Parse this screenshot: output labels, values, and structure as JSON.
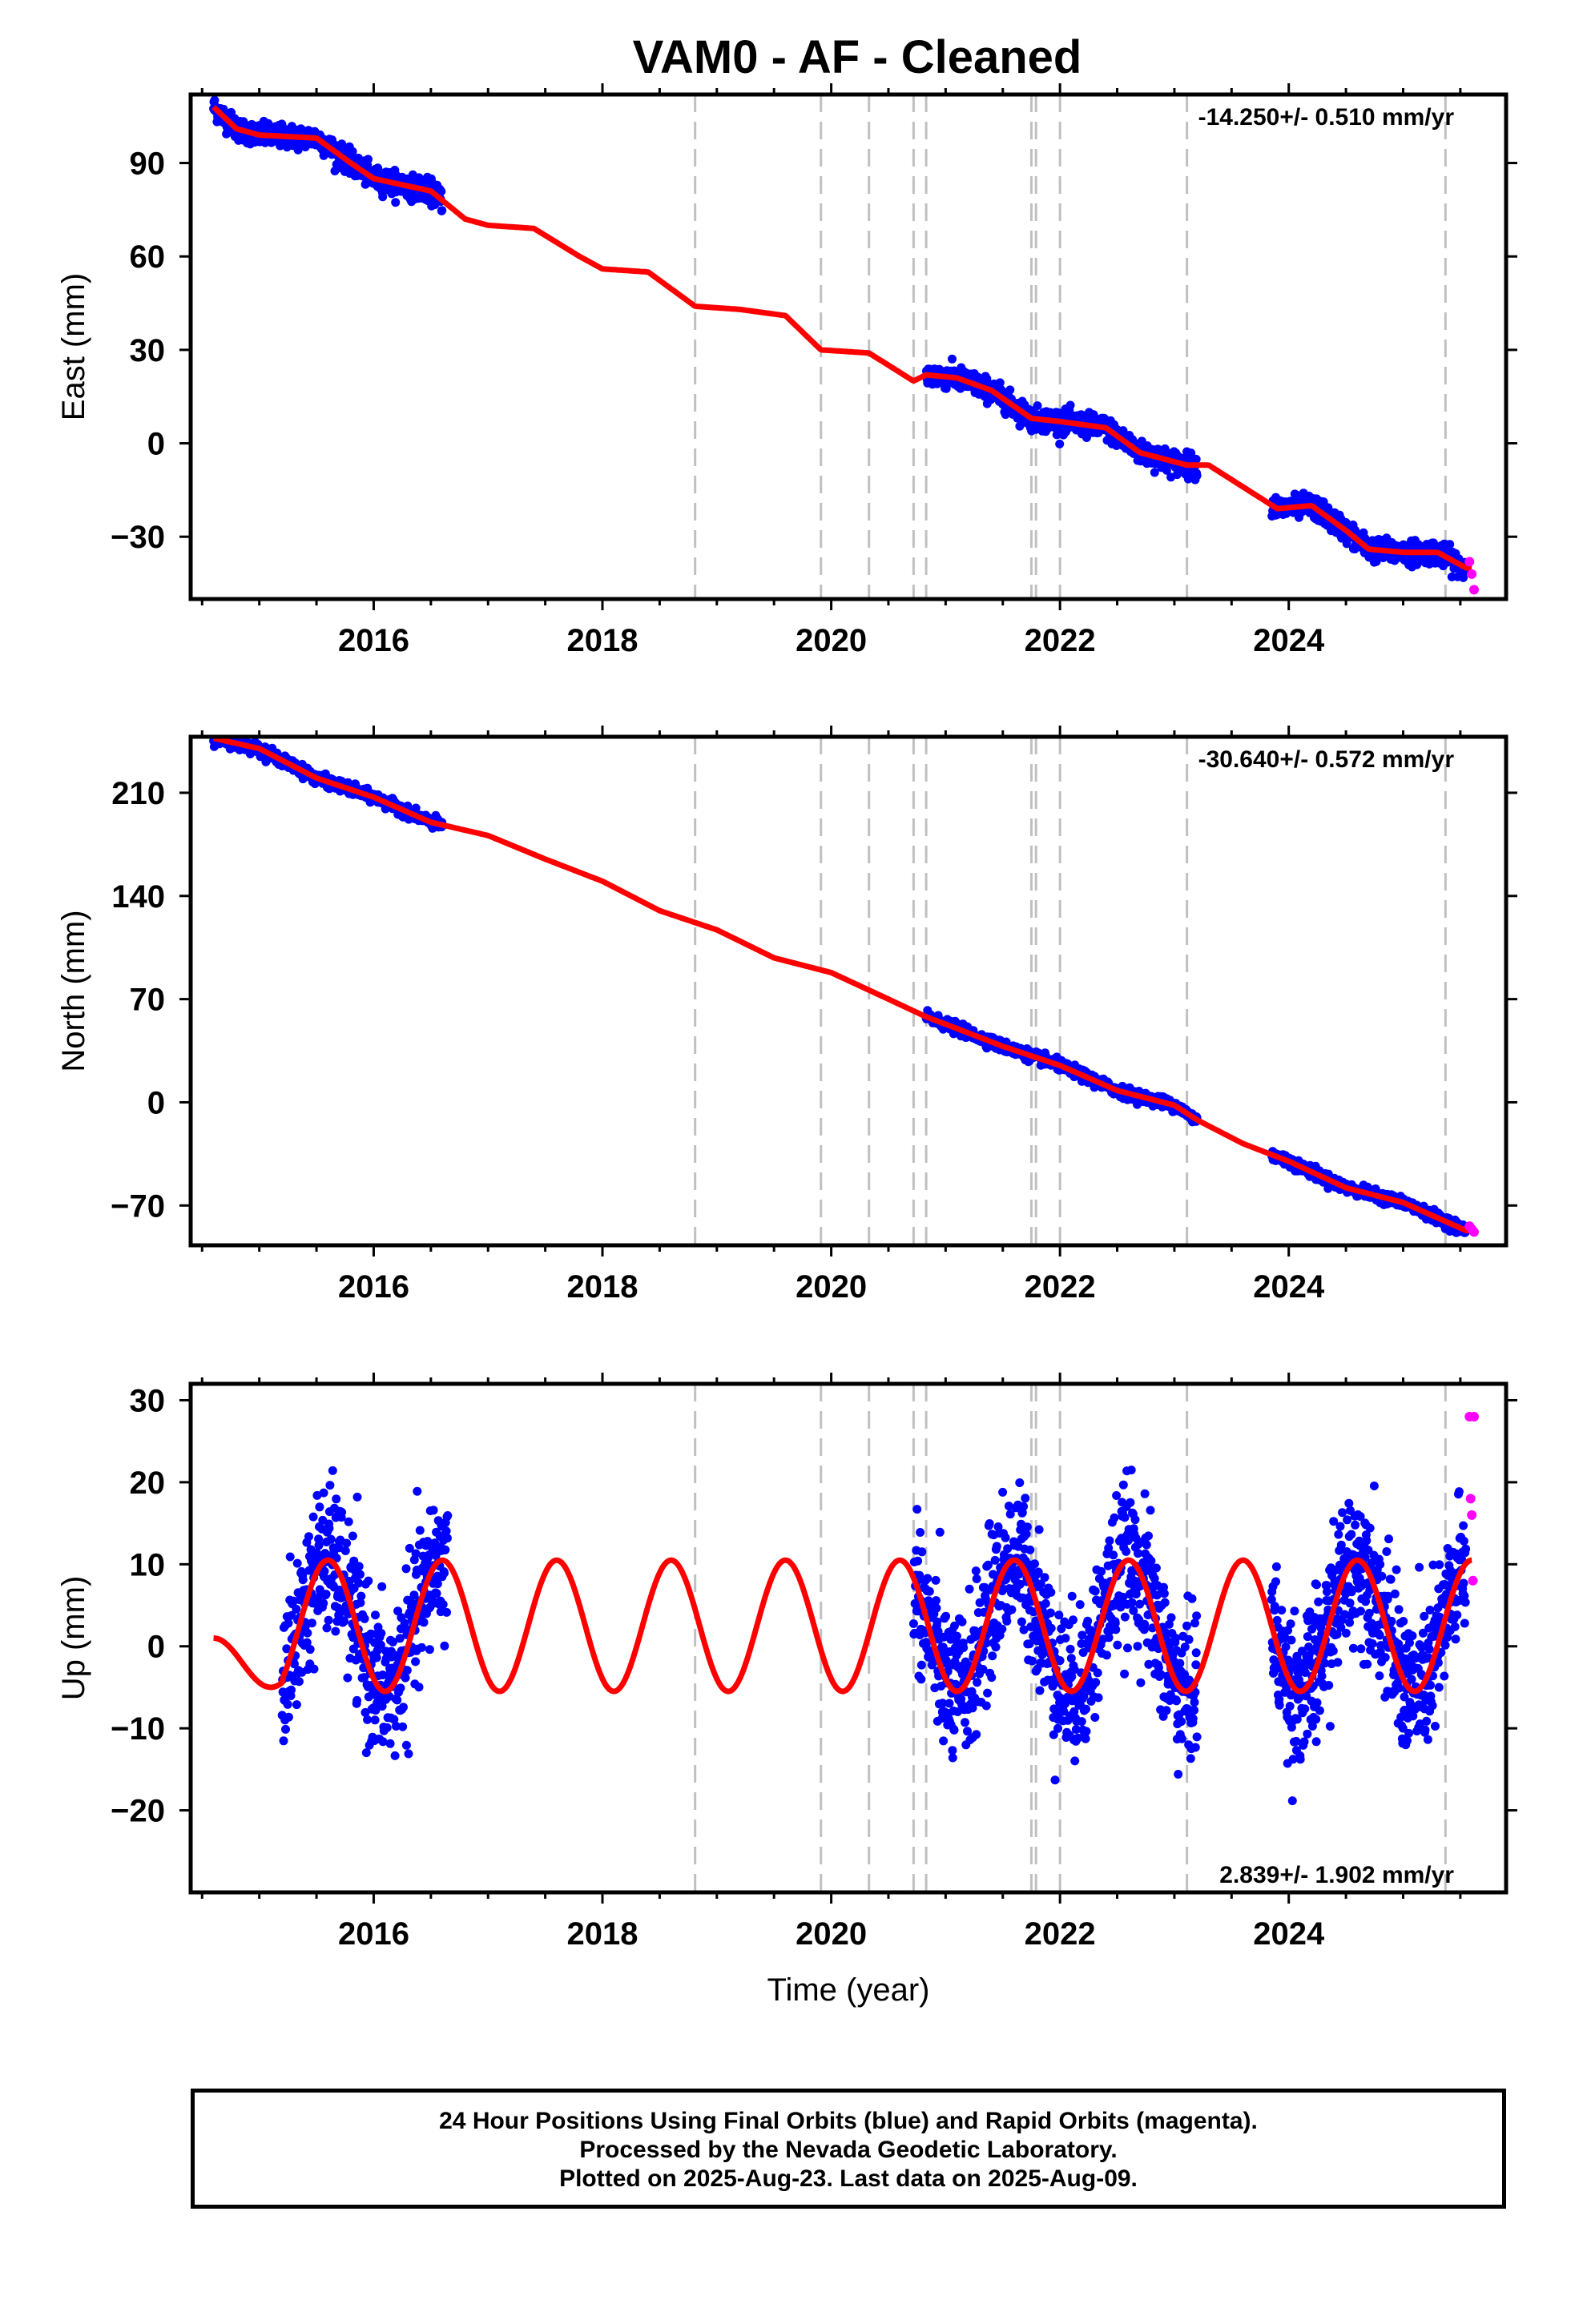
{
  "title": "VAM0  - AF - Cleaned",
  "footer": {
    "line1": "24 Hour Positions Using Final Orbits (blue) and Rapid Orbits (magenta).",
    "line2": "Processed by the Nevada Geodetic Laboratory.",
    "line3": "Plotted on 2025-Aug-23. Last data on 2025-Aug-09."
  },
  "colors": {
    "final": "#0000ff",
    "rapid": "#ff00ff",
    "model": "#ff0000",
    "events": "#c0c0c0"
  },
  "chart_data": [
    {
      "type": "scatter",
      "component": "East",
      "ylabel": "East (mm)",
      "xlabel": "",
      "xlim": [
        2014.4,
        2025.9
      ],
      "ylim": [
        -50,
        112
      ],
      "yticks": [
        -30,
        0,
        30,
        60,
        90
      ],
      "xticks": [
        2016,
        2018,
        2020,
        2022,
        2024
      ],
      "rate": "-14.250+/- 0.510 mm/yr",
      "rate_position": "top-right",
      "event_lines": [
        2018.81,
        2019.91,
        2020.33,
        2020.72,
        2020.83,
        2021.75,
        2021.79,
        2022.0,
        2023.11,
        2025.37
      ],
      "segments": [
        [
          2014.6,
          2016.6
        ],
        [
          2020.83,
          2023.2
        ],
        [
          2023.85,
          2025.55
        ]
      ],
      "model_points": [
        [
          2014.6,
          108
        ],
        [
          2014.8,
          101
        ],
        [
          2015.0,
          99
        ],
        [
          2015.5,
          98
        ],
        [
          2015.8,
          90
        ],
        [
          2016.0,
          85
        ],
        [
          2016.5,
          81
        ],
        [
          2016.8,
          72
        ],
        [
          2017.0,
          70
        ],
        [
          2017.4,
          69
        ],
        [
          2017.8,
          60
        ],
        [
          2018.0,
          56
        ],
        [
          2018.4,
          55
        ],
        [
          2018.81,
          44
        ],
        [
          2019.2,
          43
        ],
        [
          2019.6,
          41
        ],
        [
          2019.91,
          30
        ],
        [
          2020.33,
          29
        ],
        [
          2020.72,
          20
        ],
        [
          2020.83,
          22
        ],
        [
          2021.1,
          21
        ],
        [
          2021.4,
          17
        ],
        [
          2021.75,
          8
        ],
        [
          2022.0,
          7
        ],
        [
          2022.4,
          5
        ],
        [
          2022.7,
          -3
        ],
        [
          2023.11,
          -7
        ],
        [
          2023.3,
          -7
        ],
        [
          2023.6,
          -14
        ],
        [
          2023.9,
          -21
        ],
        [
          2024.2,
          -20
        ],
        [
          2024.5,
          -28
        ],
        [
          2024.7,
          -34
        ],
        [
          2025.0,
          -35
        ],
        [
          2025.3,
          -35
        ],
        [
          2025.55,
          -40
        ]
      ],
      "rapid_points": [
        [
          2025.58,
          -38
        ],
        [
          2025.6,
          -42
        ],
        [
          2025.62,
          -47
        ]
      ]
    },
    {
      "type": "scatter",
      "component": "North",
      "ylabel": "North (mm)",
      "xlabel": "",
      "xlim": [
        2014.4,
        2025.9
      ],
      "ylim": [
        -97,
        248
      ],
      "yticks": [
        -70,
        0,
        70,
        140,
        210
      ],
      "xticks": [
        2016,
        2018,
        2020,
        2022,
        2024
      ],
      "rate": "-30.640+/- 0.572 mm/yr",
      "rate_position": "top-right",
      "event_lines": [
        2018.81,
        2019.91,
        2020.33,
        2020.72,
        2020.83,
        2021.75,
        2021.79,
        2022.0,
        2023.11,
        2025.37
      ],
      "segments": [
        [
          2014.6,
          2016.6
        ],
        [
          2020.83,
          2023.2
        ],
        [
          2023.85,
          2025.55
        ]
      ],
      "model_points": [
        [
          2014.6,
          247
        ],
        [
          2015.0,
          240
        ],
        [
          2015.5,
          220
        ],
        [
          2016.0,
          207
        ],
        [
          2016.5,
          190
        ],
        [
          2017.0,
          181
        ],
        [
          2017.5,
          165
        ],
        [
          2018.0,
          150
        ],
        [
          2018.5,
          130
        ],
        [
          2019.0,
          117
        ],
        [
          2019.5,
          98
        ],
        [
          2020.0,
          88
        ],
        [
          2020.5,
          70
        ],
        [
          2020.83,
          58
        ],
        [
          2021.0,
          53
        ],
        [
          2021.5,
          38
        ],
        [
          2022.0,
          25
        ],
        [
          2022.5,
          8
        ],
        [
          2023.0,
          -2
        ],
        [
          2023.2,
          -12
        ],
        [
          2023.6,
          -28
        ],
        [
          2024.0,
          -40
        ],
        [
          2024.5,
          -58
        ],
        [
          2025.0,
          -68
        ],
        [
          2025.55,
          -87
        ]
      ],
      "rapid_points": [
        [
          2025.58,
          -84
        ],
        [
          2025.6,
          -86
        ],
        [
          2025.62,
          -88
        ]
      ]
    },
    {
      "type": "scatter",
      "component": "Up",
      "ylabel": "Up (mm)",
      "xlabel": "Time (year)",
      "xlim": [
        2014.4,
        2025.9
      ],
      "ylim": [
        -30,
        32
      ],
      "yticks": [
        -20,
        -10,
        0,
        10,
        20,
        30
      ],
      "xticks": [
        2016,
        2018,
        2020,
        2022,
        2024
      ],
      "rate": "2.839+/- 1.902 mm/yr",
      "rate_position": "bottom-right",
      "event_lines": [
        2018.81,
        2019.91,
        2020.33,
        2020.72,
        2020.83,
        2021.75,
        2021.79,
        2022.0,
        2023.11,
        2025.37
      ],
      "segments": [
        [
          2015.2,
          2016.65
        ],
        [
          2020.72,
          2023.2
        ],
        [
          2023.85,
          2025.55
        ]
      ],
      "amplitude": 8,
      "scatter_sd": 4.5,
      "rapid_points": [
        [
          2025.58,
          28
        ],
        [
          2025.59,
          18
        ],
        [
          2025.6,
          16
        ],
        [
          2025.61,
          8
        ],
        [
          2025.62,
          28
        ]
      ]
    }
  ]
}
